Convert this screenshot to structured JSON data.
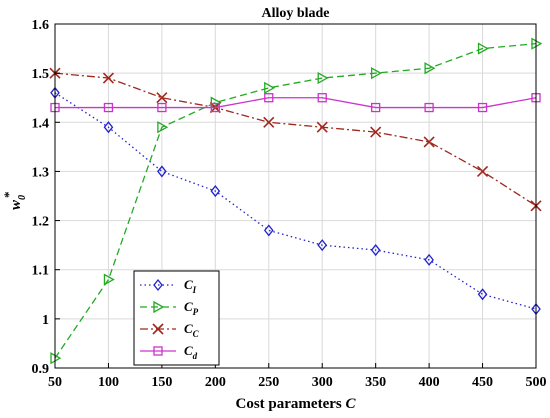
{
  "chart_data": {
    "type": "line",
    "title": "Alloy blade",
    "xlabel": {
      "main": "Cost parameters ",
      "var": "C"
    },
    "ylabel": {
      "main": "w",
      "sub": "0",
      "sup": "*"
    },
    "x": [
      50,
      100,
      150,
      200,
      250,
      300,
      350,
      400,
      450,
      500
    ],
    "xlim": [
      50,
      500
    ],
    "ylim": [
      0.9,
      1.6
    ],
    "xticks": [
      50,
      100,
      150,
      200,
      250,
      300,
      350,
      400,
      450,
      500
    ],
    "yticks": [
      0.9,
      1.0,
      1.1,
      1.2,
      1.3,
      1.4,
      1.5,
      1.6
    ],
    "grid": true,
    "legend_position": "bottom-left",
    "series": [
      {
        "name": "C",
        "subscript": "I",
        "color": "#2222cc",
        "dash": "dotted",
        "marker": "diamond",
        "values": [
          1.46,
          1.39,
          1.3,
          1.26,
          1.18,
          1.15,
          1.14,
          1.12,
          1.05,
          1.02
        ]
      },
      {
        "name": "C",
        "subscript": "P",
        "color": "#22aa22",
        "dash": "dashed",
        "marker": "triangle-right",
        "values": [
          0.92,
          1.08,
          1.39,
          1.44,
          1.47,
          1.49,
          1.5,
          1.51,
          1.55,
          1.56
        ]
      },
      {
        "name": "C",
        "subscript": "C",
        "color": "#a0281e",
        "dash": "dashdot",
        "marker": "x",
        "values": [
          1.5,
          1.49,
          1.45,
          1.43,
          1.4,
          1.39,
          1.38,
          1.36,
          1.3,
          1.23
        ]
      },
      {
        "name": "C",
        "subscript": "d",
        "color": "#cc33cc",
        "dash": "solid",
        "marker": "square",
        "values": [
          1.43,
          1.43,
          1.43,
          1.43,
          1.45,
          1.45,
          1.43,
          1.43,
          1.43,
          1.45
        ]
      }
    ]
  }
}
